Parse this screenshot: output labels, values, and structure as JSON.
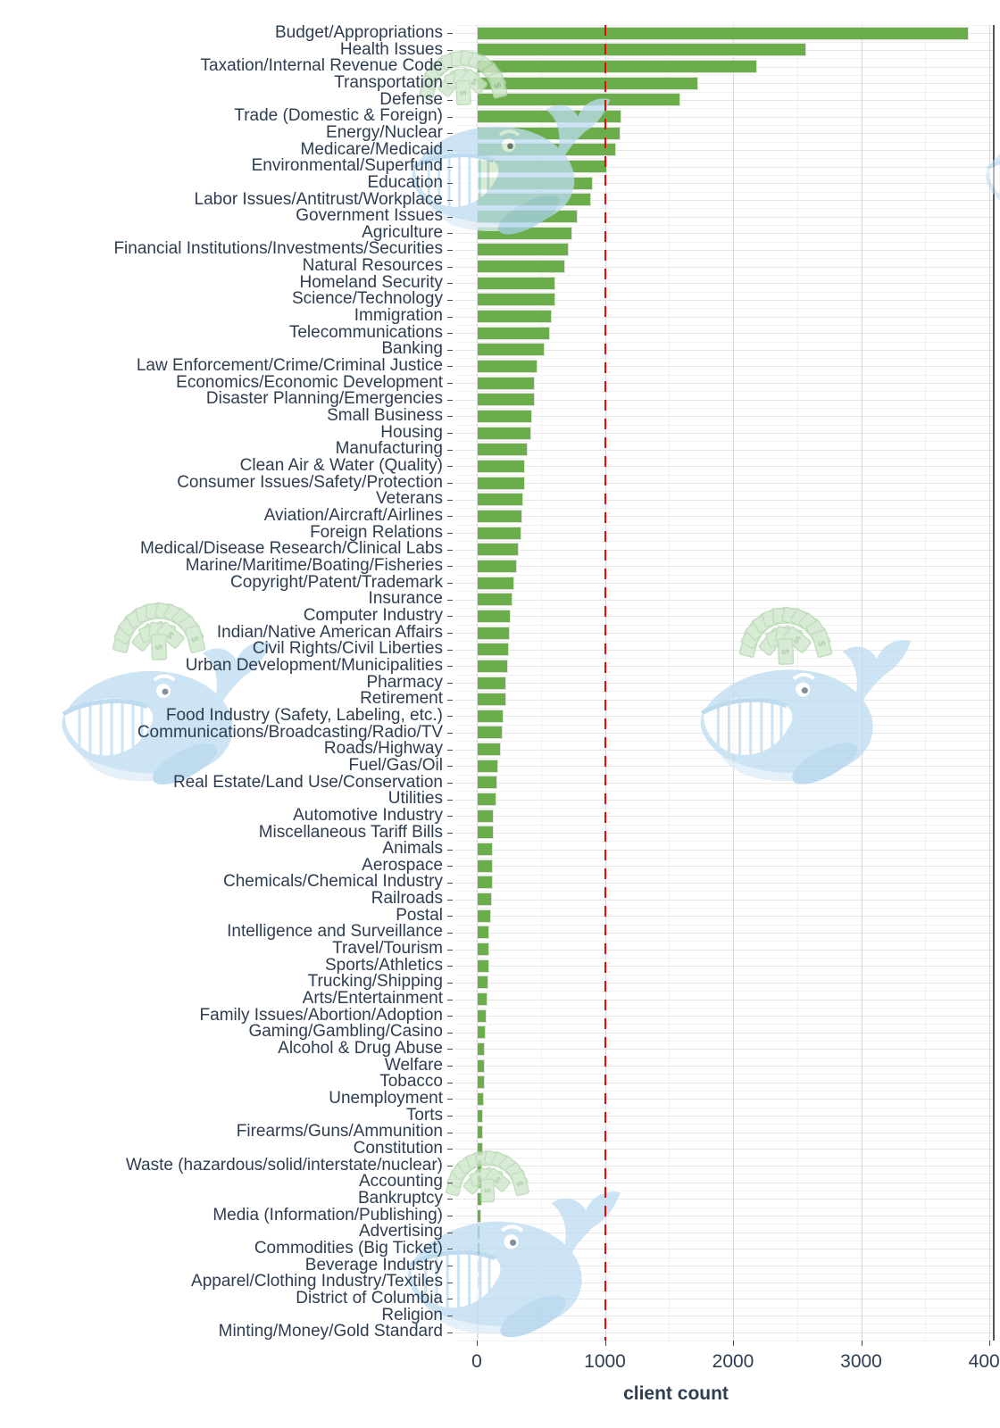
{
  "chart_data": {
    "type": "bar",
    "orientation": "horizontal",
    "title": "",
    "xlabel": "client count",
    "ylabel": "",
    "x_ticks": [
      0,
      1000,
      2000,
      3000,
      4000
    ],
    "x_tick_labels": [
      "0",
      "1000",
      "2000",
      "3000",
      "4000"
    ],
    "xlim": [
      0,
      4040
    ],
    "grid": "on",
    "legend": "none",
    "reference_line": {
      "value": 1000,
      "style": "dashed",
      "color": "#FF0000"
    },
    "bar_color": "#6BAC4B",
    "text_color": "#2E3D50",
    "categories": [
      "Budget/Appropriations",
      "Health Issues",
      "Taxation/Internal Revenue Code",
      "Transportation",
      "Defense",
      "Trade (Domestic & Foreign)",
      "Energy/Nuclear",
      "Medicare/Medicaid",
      "Environmental/Superfund",
      "Education",
      "Labor Issues/Antitrust/Workplace",
      "Government Issues",
      "Agriculture",
      "Financial Institutions/Investments/Securities",
      "Natural Resources",
      "Homeland Security",
      "Science/Technology",
      "Immigration",
      "Telecommunications",
      "Banking",
      "Law Enforcement/Crime/Criminal Justice",
      "Economics/Economic Development",
      "Disaster Planning/Emergencies",
      "Small Business",
      "Housing",
      "Manufacturing",
      "Clean Air & Water (Quality)",
      "Consumer Issues/Safety/Protection",
      "Veterans",
      "Aviation/Aircraft/Airlines",
      "Foreign Relations",
      "Medical/Disease Research/Clinical Labs",
      "Marine/Maritime/Boating/Fisheries",
      "Copyright/Patent/Trademark",
      "Insurance",
      "Computer Industry",
      "Indian/Native American Affairs",
      "Civil Rights/Civil Liberties",
      "Urban Development/Municipalities",
      "Pharmacy",
      "Retirement",
      "Food Industry (Safety, Labeling, etc.)",
      "Communications/Broadcasting/Radio/TV",
      "Roads/Highway",
      "Fuel/Gas/Oil",
      "Real Estate/Land Use/Conservation",
      "Utilities",
      "Automotive Industry",
      "Miscellaneous Tariff Bills",
      "Animals",
      "Aerospace",
      "Chemicals/Chemical Industry",
      "Railroads",
      "Postal",
      "Intelligence and Surveillance",
      "Travel/Tourism",
      "Sports/Athletics",
      "Trucking/Shipping",
      "Arts/Entertainment",
      "Family Issues/Abortion/Adoption",
      "Gaming/Gambling/Casino",
      "Alcohol & Drug Abuse",
      "Welfare",
      "Tobacco",
      "Unemployment",
      "Torts",
      "Firearms/Guns/Ammunition",
      "Constitution",
      "Waste (hazardous/solid/interstate/nuclear)",
      "Accounting",
      "Bankruptcy",
      "Media (Information/Publishing)",
      "Advertising",
      "Commodities (Big Ticket)",
      "Beverage Industry",
      "Apparel/Clothing Industry/Textiles",
      "District of Columbia",
      "Religion",
      "Minting/Money/Gold Standard"
    ],
    "values": [
      3840,
      2570,
      2190,
      1730,
      1590,
      1130,
      1120,
      1085,
      1020,
      905,
      890,
      790,
      745,
      715,
      690,
      615,
      610,
      585,
      570,
      530,
      475,
      452,
      450,
      430,
      428,
      400,
      376,
      375,
      363,
      352,
      350,
      325,
      315,
      295,
      280,
      265,
      255,
      248,
      243,
      232,
      230,
      210,
      205,
      190,
      170,
      160,
      155,
      135,
      130,
      127,
      125,
      123,
      120,
      110,
      100,
      98,
      95,
      90,
      85,
      80,
      68,
      65,
      62,
      60,
      55,
      52,
      50,
      48,
      45,
      42,
      40,
      35,
      30,
      26,
      24,
      20,
      16,
      12,
      8
    ],
    "watermark": "cartoon whale blowing money (repeated, light blue & pale green)"
  }
}
